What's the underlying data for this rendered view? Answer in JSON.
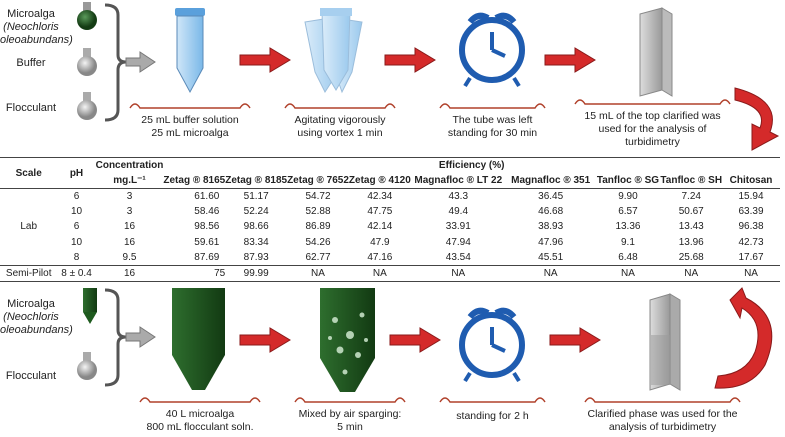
{
  "top_process": {
    "inputs": [
      "Microalga",
      "(Neochloris",
      "oleoabundans)",
      "Buffer",
      "Flocculant"
    ],
    "steps": [
      {
        "caption": [
          "25 mL buffer solution",
          "25 mL microalga"
        ]
      },
      {
        "caption": [
          "Agitating vigorously",
          "using vortex 1 min"
        ]
      },
      {
        "caption": [
          "The tube was left",
          "standing for 30 min"
        ]
      },
      {
        "caption": [
          "15 mL of the top clarified was",
          "used for the analysis of",
          "turbidimetry"
        ]
      }
    ]
  },
  "table": {
    "headers": {
      "scale": "Scale",
      "ph": "pH",
      "concentration": "Concentration",
      "concentration_unit": "mg.L⁻¹",
      "efficiency": "Efficiency (%)",
      "flocculants": [
        "Zetag ® 8165",
        "Zetag ® 8185",
        "Zetag ® 7652",
        "Zetag ® 4120",
        "Magnafloc ®  LT 22",
        "Magnafloc ®  351",
        "Tanfloc ® SG",
        "Tanfloc ® SH",
        "Chitosan"
      ]
    },
    "lab_label": "Lab",
    "lab_rows": [
      {
        "ph": "6",
        "conc": "3",
        "values": [
          "61.60",
          "51.17",
          "54.72",
          "42.34",
          "43.3",
          "36.45",
          "9.90",
          "7.24",
          "15.94"
        ]
      },
      {
        "ph": "10",
        "conc": "3",
        "values": [
          "58.46",
          "52.24",
          "52.88",
          "47.75",
          "49.4",
          "46.68",
          "6.57",
          "50.67",
          "63.39"
        ]
      },
      {
        "ph": "6",
        "conc": "16",
        "values": [
          "98.56",
          "98.66",
          "86.89",
          "42.14",
          "33.91",
          "38.93",
          "13.36",
          "13.43",
          "96.38"
        ]
      },
      {
        "ph": "10",
        "conc": "16",
        "values": [
          "59.61",
          "83.34",
          "54.26",
          "47.9",
          "47.94",
          "47.96",
          "9.1",
          "13.96",
          "42.73"
        ]
      },
      {
        "ph": "8",
        "conc": "9.5",
        "values": [
          "87.69",
          "87.93",
          "62.77",
          "47.16",
          "43.54",
          "45.51",
          "6.48",
          "25.68",
          "17.67"
        ]
      }
    ],
    "semi_pilot": {
      "scale": "Semi-Pilot",
      "ph": "8 ± 0.4",
      "conc": "16",
      "values": [
        "75",
        "99.99",
        "NA",
        "NA",
        "NA",
        "NA",
        "NA",
        "NA",
        "NA"
      ]
    }
  },
  "bottom_process": {
    "inputs": [
      "Microalga",
      "(Neochloris",
      "oleoabundans)",
      "Flocculant"
    ],
    "steps": [
      {
        "caption": [
          "40 L microalga",
          "800 mL flocculant soln."
        ]
      },
      {
        "caption": [
          "Mixed by air sparging:",
          "5 min"
        ]
      },
      {
        "caption": [
          "standing for 2 h"
        ]
      },
      {
        "caption": [
          "Clarified phase was used for the",
          "analysis of turbidimetry"
        ]
      }
    ]
  },
  "colors": {
    "arrow": "#d42a2a",
    "clock": "#1f5cb0",
    "algae": "#1e5a1e",
    "tube": "#7ab8e8"
  }
}
